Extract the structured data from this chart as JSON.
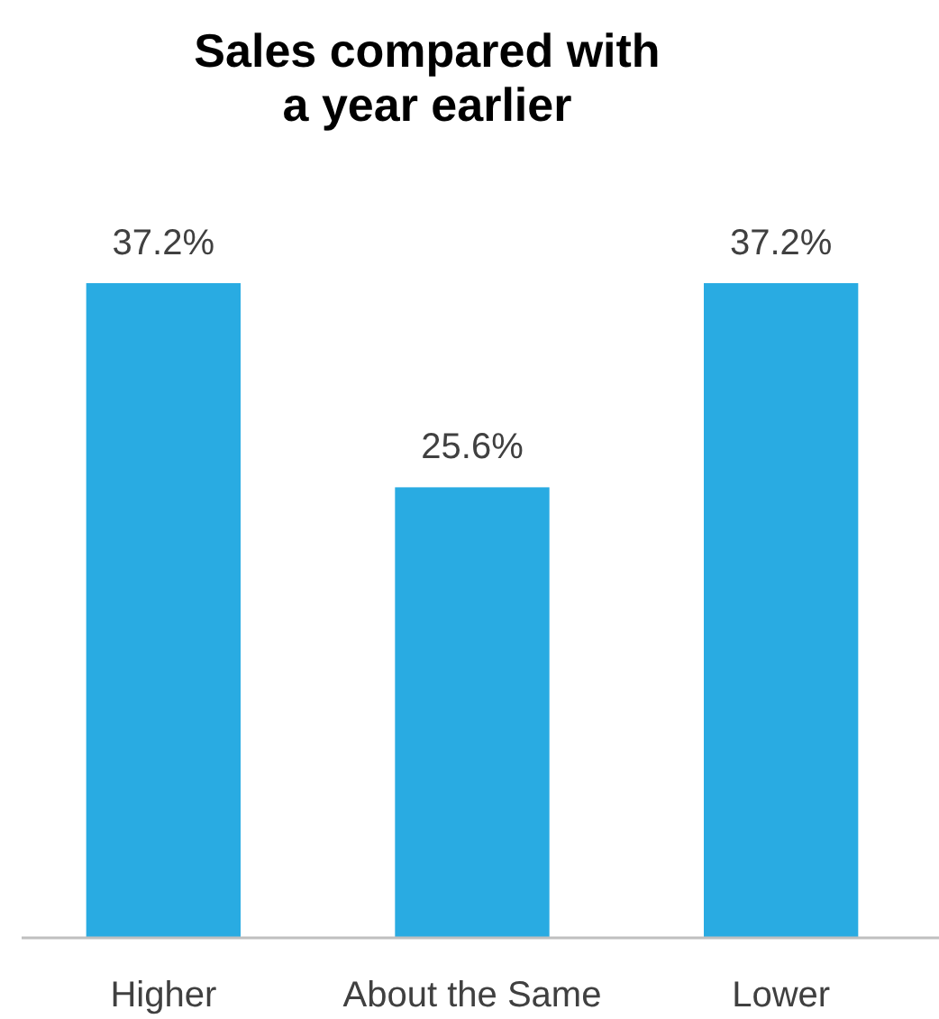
{
  "chart_data": {
    "type": "bar",
    "title": "Sales compared with\na year earlier",
    "categories": [
      "Higher",
      "About the Same",
      "Lower"
    ],
    "values": [
      37.2,
      25.6,
      37.2
    ],
    "value_labels": [
      "37.2%",
      "25.6%",
      "37.2%"
    ],
    "color": "#29abe2"
  }
}
